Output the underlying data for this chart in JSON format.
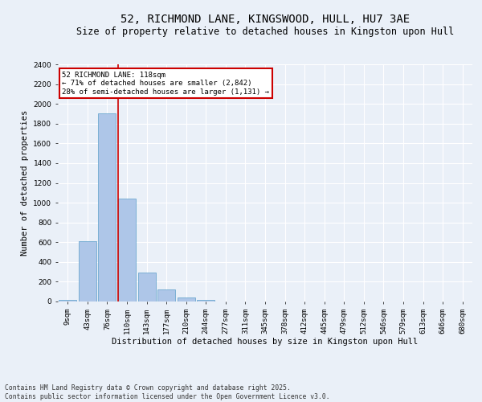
{
  "title": "52, RICHMOND LANE, KINGSWOOD, HULL, HU7 3AE",
  "subtitle": "Size of property relative to detached houses in Kingston upon Hull",
  "xlabel": "Distribution of detached houses by size in Kingston upon Hull",
  "ylabel": "Number of detached properties",
  "categories": [
    "9sqm",
    "43sqm",
    "76sqm",
    "110sqm",
    "143sqm",
    "177sqm",
    "210sqm",
    "244sqm",
    "277sqm",
    "311sqm",
    "345sqm",
    "378sqm",
    "412sqm",
    "445sqm",
    "479sqm",
    "512sqm",
    "546sqm",
    "579sqm",
    "613sqm",
    "646sqm",
    "680sqm"
  ],
  "values": [
    15,
    610,
    1905,
    1040,
    290,
    120,
    42,
    18,
    0,
    0,
    0,
    0,
    0,
    0,
    0,
    0,
    0,
    0,
    0,
    0,
    0
  ],
  "bar_color": "#aec6e8",
  "bar_edge_color": "#5a9ec9",
  "vline_color": "#cc0000",
  "annotation_text": "52 RICHMOND LANE: 118sqm\n← 71% of detached houses are smaller (2,842)\n28% of semi-detached houses are larger (1,131) →",
  "annotation_box_color": "#cc0000",
  "annotation_fill": "#ffffff",
  "ylim": [
    0,
    2400
  ],
  "yticks": [
    0,
    200,
    400,
    600,
    800,
    1000,
    1200,
    1400,
    1600,
    1800,
    2000,
    2200,
    2400
  ],
  "footnote": "Contains HM Land Registry data © Crown copyright and database right 2025.\nContains public sector information licensed under the Open Government Licence v3.0.",
  "bg_color": "#eaf0f8",
  "grid_color": "#ffffff",
  "title_fontsize": 10,
  "subtitle_fontsize": 8.5,
  "axis_label_fontsize": 7.5,
  "tick_fontsize": 6.5,
  "footnote_fontsize": 5.8,
  "annot_fontsize": 6.5
}
